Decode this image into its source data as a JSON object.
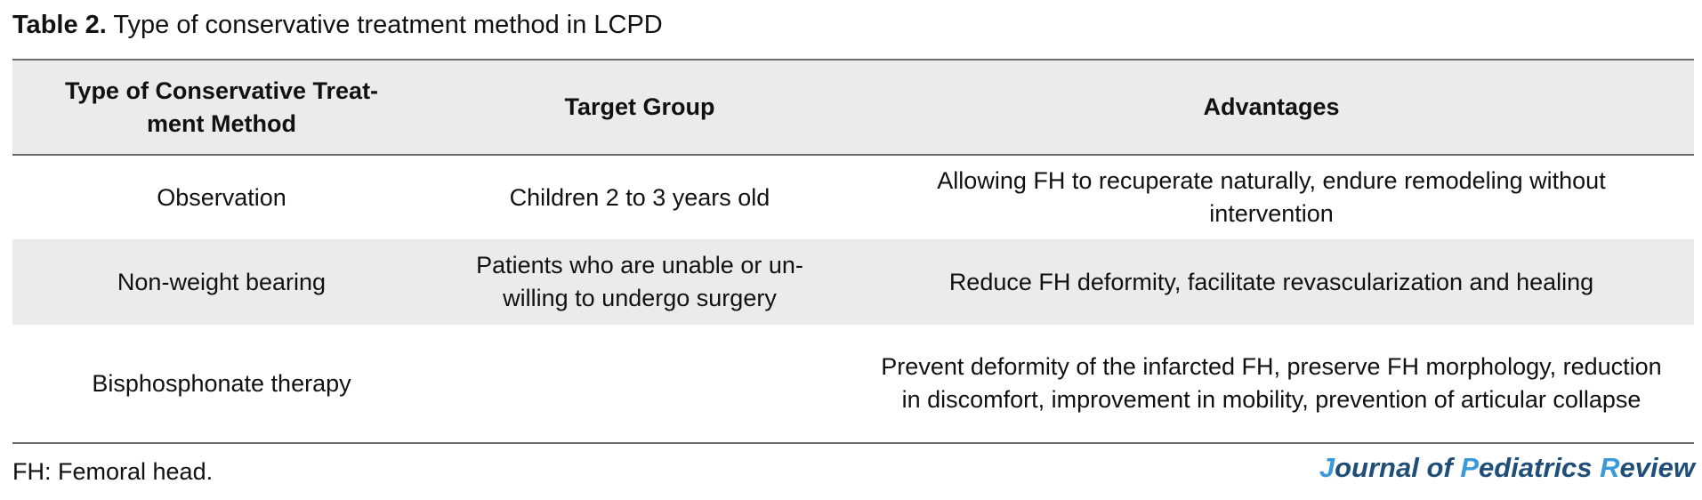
{
  "caption": {
    "label": "Table 2.",
    "text": "Type of conservative treatment method in LCPD"
  },
  "table": {
    "headers": [
      "Type of Conservative Treat-ment Method",
      "Target Group",
      "Advantages"
    ],
    "rows": [
      {
        "method": "Observation",
        "target": "Children 2 to 3 years old",
        "advantages": "Allowing FH to recuperate naturally, endure remodeling without intervention"
      },
      {
        "method": "Non-weight bearing",
        "target": "Patients who are unable or un-willing to undergo surgery",
        "advantages": "Reduce FH deformity, facilitate revascularization and healing"
      },
      {
        "method": "Bisphosphonate therapy",
        "target": "",
        "advantages": "Prevent deformity of the infarcted FH, preserve FH morphology, reduction in discomfort, improvement in mobility, prevention of articular collapse"
      }
    ]
  },
  "footnote": "FH: Femoral head.",
  "journal": {
    "j": "J",
    "ournal_of": "ournal of ",
    "p": "P",
    "ediatrics": "ediatrics ",
    "r": "R",
    "eview": "eview"
  },
  "colors": {
    "header_bg": "#ebebeb",
    "rule": "#6b6b6b",
    "journal_dark": "#1f4e79",
    "journal_accent": "#3a9ad9"
  }
}
